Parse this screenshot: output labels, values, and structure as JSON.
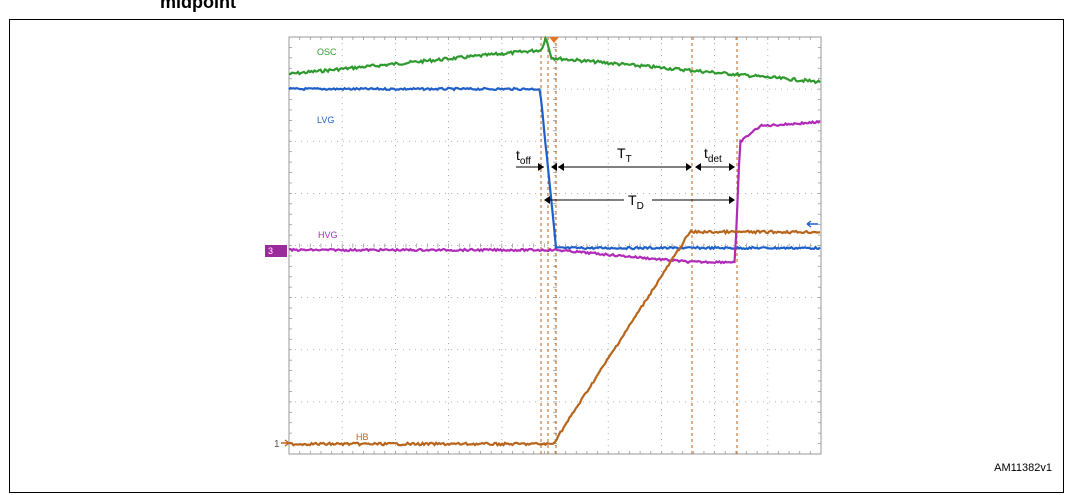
{
  "caption": "midpoint",
  "figure_ref": "AM11382v1",
  "colors": {
    "osc": "#2e9a2e",
    "lvg": "#1f5fc8",
    "hvg": "#b02ab8",
    "hb": "#b8651c",
    "marker": "#b8651c",
    "grid": "#9a9a9a",
    "trigger": "#e8761e",
    "channel_badge": "#9b2a9b"
  },
  "chart_data": {
    "type": "line",
    "title": "",
    "xlabel": "",
    "ylabel": "",
    "grid": true,
    "series": [
      {
        "name": "OSC",
        "label": "OSC",
        "color": "#2e9a2e"
      },
      {
        "name": "LVG",
        "label": "LVG",
        "color": "#1f5fc8"
      },
      {
        "name": "HVG",
        "label": "HVG",
        "color": "#b02ab8"
      },
      {
        "name": "HB",
        "label": "HB",
        "color": "#b8651c"
      }
    ],
    "channel_markers": {
      "hvg_channel": "3",
      "hb_channel": "1"
    },
    "annotations": {
      "toff": {
        "main": "t",
        "sub": "off"
      },
      "TT": {
        "main": "T",
        "sub": "T"
      },
      "tdet": {
        "main": "t",
        "sub": "det"
      },
      "TD": {
        "main": "T",
        "sub": "D"
      }
    }
  }
}
